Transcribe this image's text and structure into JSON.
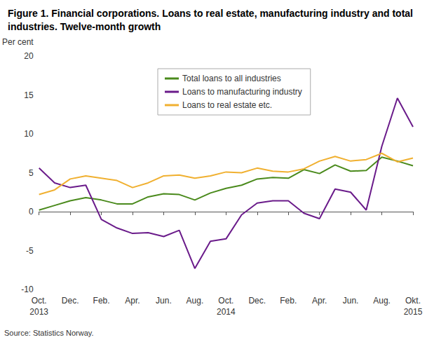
{
  "chart_data": {
    "type": "line",
    "title": "Figure 1. Financial corporations. Loans to real estate, manufacturing industry and total industries. Twelve-month growth",
    "y_label": "Per cent",
    "source": "Source: Statistics Norway.",
    "categories": [
      "Oct.\n2013",
      null,
      "Dec.",
      null,
      "Feb.",
      null,
      "Apr.",
      null,
      "Jun.",
      null,
      "Aug.",
      null,
      "Oct.\n2014",
      null,
      "Dec.",
      null,
      "Feb.",
      null,
      "Apr.",
      null,
      "Jun.",
      null,
      "Aug.",
      null,
      "Okt.\n2015"
    ],
    "series": [
      {
        "name": "Total loans to all industries",
        "color": "#4a8a1c",
        "values": [
          0.2,
          0.8,
          1.4,
          1.8,
          1.5,
          1.0,
          1.0,
          1.9,
          2.3,
          2.2,
          1.5,
          2.4,
          3.0,
          3.4,
          4.2,
          4.4,
          4.3,
          5.4,
          4.9,
          6.0,
          5.2,
          5.3,
          7.0,
          6.5,
          5.9
        ]
      },
      {
        "name": "Loans to manufacturing industry",
        "color": "#6a1b8a",
        "values": [
          5.6,
          3.7,
          3.1,
          3.4,
          -1.0,
          -2.1,
          -2.8,
          -2.7,
          -3.2,
          -2.4,
          -7.3,
          -3.8,
          -3.5,
          -0.4,
          1.1,
          1.4,
          1.4,
          -0.2,
          -0.9,
          2.9,
          2.5,
          0.2,
          8.4,
          14.6,
          10.9
        ]
      },
      {
        "name": "Loans to real estate etc.",
        "color": "#f0b030",
        "values": [
          2.2,
          2.8,
          4.2,
          4.6,
          4.3,
          4.0,
          3.1,
          3.7,
          4.6,
          4.7,
          4.3,
          4.6,
          5.1,
          5.0,
          5.6,
          5.2,
          5.1,
          5.5,
          6.5,
          7.1,
          6.5,
          6.7,
          7.5,
          6.4,
          6.9
        ]
      }
    ],
    "ylim": [
      -10,
      20
    ],
    "yticks": [
      -10,
      -5,
      0,
      5,
      10,
      15,
      20
    ],
    "grid": false,
    "legend": "top"
  }
}
